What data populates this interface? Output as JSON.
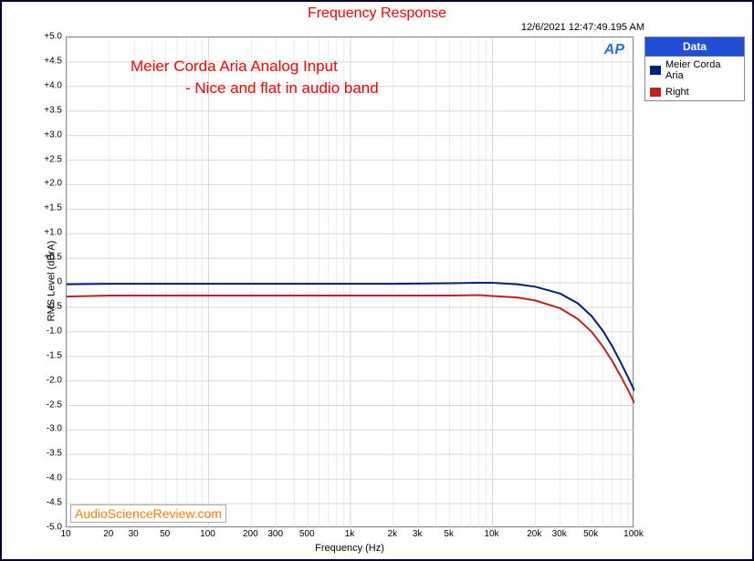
{
  "chart": {
    "type": "line",
    "title": "Frequency Response",
    "timestamp": "12/6/2021 12:47:49.195 AM",
    "xlabel": "Frequency (Hz)",
    "ylabel": "RMS Level (dBrA)",
    "xlim": [
      10,
      100000
    ],
    "ylim": [
      -5.0,
      5.0
    ],
    "xscale": "log",
    "yticks": [
      "+5.0",
      "+4.5",
      "+4.0",
      "+3.5",
      "+3.0",
      "+2.5",
      "+2.0",
      "+1.5",
      "+1.0",
      "+0.5",
      "0",
      "-0.5",
      "-1.0",
      "-1.5",
      "-2.0",
      "-2.5",
      "-3.0",
      "-3.5",
      "-4.0",
      "-4.5",
      "-5.0"
    ],
    "ytick_vals": [
      5.0,
      4.5,
      4.0,
      3.5,
      3.0,
      2.5,
      2.0,
      1.5,
      1.0,
      0.5,
      0,
      -0.5,
      -1.0,
      -1.5,
      -2.0,
      -2.5,
      -3.0,
      -3.5,
      -4.0,
      -4.5,
      -5.0
    ],
    "xticks_major": [
      10,
      20,
      30,
      50,
      100,
      200,
      300,
      500,
      1000,
      2000,
      3000,
      5000,
      10000,
      20000,
      30000,
      50000,
      100000
    ],
    "xtick_labels": [
      "10",
      "20",
      "30",
      "50",
      "100",
      "200",
      "300",
      "500",
      "1k",
      "2k",
      "3k",
      "5k",
      "10k",
      "20k",
      "30k",
      "50k",
      "100k"
    ],
    "background_color": "#ffffff",
    "grid_color": "#d8d8d8",
    "grid_width": 1,
    "border_color": "#888888",
    "title_color": "#ff0000",
    "title_fontsize": 16,
    "label_fontsize": 11,
    "tick_fontsize": 10,
    "annotation1": "Meier Corda Aria Analog Input",
    "annotation2": "- Nice and flat in audio band",
    "annotation_color": "#ff0000",
    "annotation_fontsize": 17,
    "watermark": "AudioScienceReview.com",
    "watermark_color": "#ff8000",
    "ap_logo": "AP",
    "series": [
      {
        "name": "Meier Corda Aria",
        "color": "#001f7f",
        "line_width": 2,
        "data": [
          [
            10,
            -0.03
          ],
          [
            20,
            -0.02
          ],
          [
            50,
            -0.02
          ],
          [
            100,
            -0.02
          ],
          [
            200,
            -0.02
          ],
          [
            500,
            -0.02
          ],
          [
            1000,
            -0.02
          ],
          [
            2000,
            -0.02
          ],
          [
            5000,
            -0.01
          ],
          [
            8000,
            0.0
          ],
          [
            10000,
            0.0
          ],
          [
            15000,
            -0.03
          ],
          [
            20000,
            -0.08
          ],
          [
            30000,
            -0.22
          ],
          [
            40000,
            -0.42
          ],
          [
            50000,
            -0.68
          ],
          [
            60000,
            -0.98
          ],
          [
            70000,
            -1.3
          ],
          [
            80000,
            -1.62
          ],
          [
            90000,
            -1.92
          ],
          [
            100000,
            -2.2
          ]
        ]
      },
      {
        "name": "Right",
        "color": "#c02020",
        "line_width": 2,
        "data": [
          [
            10,
            -0.28
          ],
          [
            20,
            -0.26
          ],
          [
            50,
            -0.26
          ],
          [
            100,
            -0.26
          ],
          [
            200,
            -0.26
          ],
          [
            500,
            -0.26
          ],
          [
            1000,
            -0.26
          ],
          [
            2000,
            -0.26
          ],
          [
            5000,
            -0.26
          ],
          [
            8000,
            -0.25
          ],
          [
            10000,
            -0.27
          ],
          [
            15000,
            -0.3
          ],
          [
            20000,
            -0.36
          ],
          [
            30000,
            -0.52
          ],
          [
            40000,
            -0.74
          ],
          [
            50000,
            -1.0
          ],
          [
            60000,
            -1.3
          ],
          [
            70000,
            -1.6
          ],
          [
            80000,
            -1.9
          ],
          [
            90000,
            -2.18
          ],
          [
            100000,
            -2.45
          ]
        ]
      }
    ],
    "legend": {
      "header": "Data",
      "header_bg": "#1e4fd6",
      "header_color": "#ffffff"
    }
  }
}
